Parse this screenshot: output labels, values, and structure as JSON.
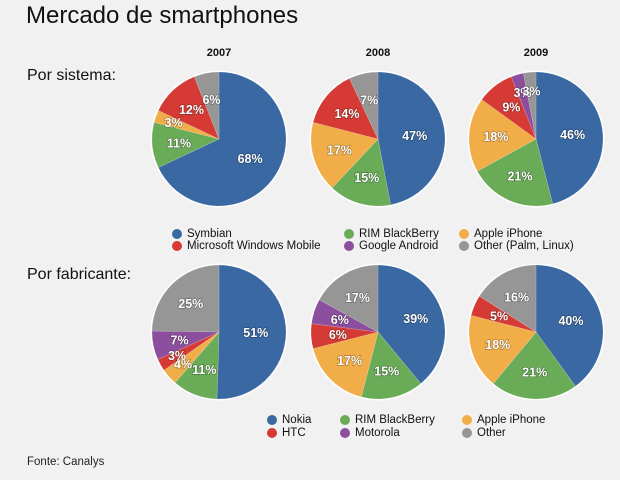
{
  "title": "Mercado de smartphones",
  "source": "Fonte: Canalys",
  "colors": {
    "blue": "#3a68a3",
    "green": "#6aab58",
    "orange": "#f0ad48",
    "red": "#d53a35",
    "purple": "#8b4f9d",
    "gray": "#969696"
  },
  "chart_data": [
    {
      "type": "pie",
      "section": "Por sistema:",
      "years": [
        "2007",
        "2008",
        "2009"
      ],
      "legend": [
        {
          "label": "Symbian",
          "color": "blue"
        },
        {
          "label": "RIM BlackBerry",
          "color": "green"
        },
        {
          "label": "Apple iPhone",
          "color": "orange"
        },
        {
          "label": "Microsoft Windows Mobile",
          "color": "red"
        },
        {
          "label": "Google Android",
          "color": "purple"
        },
        {
          "label": "Other (Palm, Linux)",
          "color": "gray"
        }
      ],
      "series": [
        {
          "name": "2007",
          "values": [
            68,
            11,
            3,
            12,
            0,
            6
          ],
          "labels": [
            "68%",
            "11%",
            "3%",
            "12%",
            "",
            "6%"
          ]
        },
        {
          "name": "2008",
          "values": [
            47,
            15,
            17,
            14,
            0,
            7
          ],
          "labels": [
            "47%",
            "15%",
            "17%",
            "14%",
            "",
            "7%"
          ]
        },
        {
          "name": "2009",
          "values": [
            46,
            21,
            18,
            9,
            3,
            3
          ],
          "labels": [
            "46%",
            "21%",
            "18%",
            "9%",
            "3%",
            "3%"
          ]
        }
      ]
    },
    {
      "type": "pie",
      "section": "Por fabricante:",
      "years": [
        "2007",
        "2008",
        "2009"
      ],
      "legend": [
        {
          "label": "Nokia",
          "color": "blue"
        },
        {
          "label": "RIM BlackBerry",
          "color": "green"
        },
        {
          "label": "Apple iPhone",
          "color": "orange"
        },
        {
          "label": "HTC",
          "color": "red"
        },
        {
          "label": "Motorola",
          "color": "purple"
        },
        {
          "label": "Other",
          "color": "gray"
        }
      ],
      "series": [
        {
          "name": "2007",
          "values": [
            51,
            11,
            4,
            3,
            7,
            25
          ],
          "labels": [
            "51%",
            "11%",
            "4%",
            "3%",
            "7%",
            "25%"
          ]
        },
        {
          "name": "2008",
          "values": [
            39,
            15,
            17,
            6,
            6,
            17
          ],
          "labels": [
            "39%",
            "15%",
            "17%",
            "6%",
            "6%",
            "17%"
          ]
        },
        {
          "name": "2009",
          "values": [
            40,
            21,
            18,
            5,
            0,
            16
          ],
          "labels": [
            "40%",
            "21%",
            "18%",
            "5%",
            "",
            "16%"
          ]
        }
      ]
    }
  ]
}
